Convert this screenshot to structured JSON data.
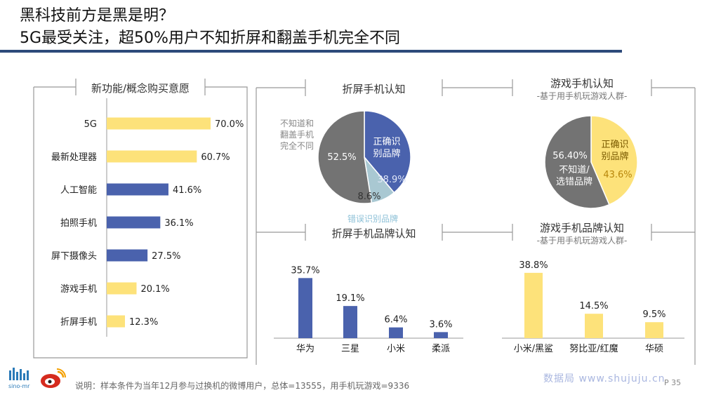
{
  "header": {
    "title_line1": "黑科技前方是黑是明？",
    "title_line2": "5G最受关注，超50%用户不知折屏和翻盖手机完全不同"
  },
  "footer": {
    "note": "说明：样本条件为当年12月参与过换机的微博用户，总体=13555，用手机玩游戏=9336",
    "watermark": "数据局 www.shujuju.cn",
    "page": "P 35",
    "logo_text": "sino-mr"
  },
  "colors": {
    "blue": "#4a62ad",
    "yellow": "#fde27a",
    "gray": "#737373",
    "lightblue": "#a9c8d2",
    "axis": "#999999"
  },
  "chart_data": [
    {
      "type": "bar",
      "orientation": "horizontal",
      "title": "新功能/概念购买意愿",
      "categories": [
        "5G",
        "最新处理器",
        "人工智能",
        "拍照手机",
        "屏下摄像头",
        "游戏手机",
        "折屏手机"
      ],
      "values": [
        70.0,
        60.7,
        41.6,
        36.1,
        27.5,
        20.1,
        12.3
      ],
      "value_labels": [
        "70.0%",
        "60.7%",
        "41.6%",
        "36.1%",
        "27.5%",
        "20.1%",
        "12.3%"
      ],
      "bar_colors": [
        "yellow",
        "yellow",
        "blue",
        "blue",
        "blue",
        "yellow",
        "yellow"
      ],
      "xlim": [
        0,
        100
      ]
    },
    {
      "type": "pie",
      "title": "折屏手机认知",
      "slices": [
        {
          "label": "正确识别品牌",
          "value": 38.9,
          "value_label": "38.9%",
          "color": "blue"
        },
        {
          "label": "错误识别品牌",
          "value": 8.6,
          "value_label": "8.6%",
          "color": "lightblue"
        },
        {
          "label": "不知道和翻盖手机完全不同",
          "value": 52.5,
          "value_label": "52.5%",
          "color": "gray"
        }
      ],
      "annotations": {
        "unknown_line1": "不知道和",
        "unknown_line2": "翻盖手机",
        "unknown_line3": "完全不同",
        "correct_line1": "正确识",
        "correct_line2": "别品牌",
        "wrong": "错误识别品牌"
      }
    },
    {
      "type": "pie",
      "title": "游戏手机认知",
      "subtitle": "-基于用手机玩游戏人群-",
      "slices": [
        {
          "label": "正确识别品牌",
          "value": 43.6,
          "value_label": "43.6%",
          "color": "yellow"
        },
        {
          "label": "不知道/选错品牌",
          "value": 56.4,
          "value_label": "56.40%",
          "color": "gray"
        }
      ],
      "annotations": {
        "correct_line1": "正确识",
        "correct_line2": "别品牌",
        "unknown_line1": "不知道/",
        "unknown_line2": "选错品牌"
      }
    },
    {
      "type": "bar",
      "title": "折屏手机品牌认知",
      "categories": [
        "华为",
        "三星",
        "小米",
        "柔派"
      ],
      "values": [
        35.7,
        19.1,
        6.4,
        3.6
      ],
      "value_labels": [
        "35.7%",
        "19.1%",
        "6.4%",
        "3.6%"
      ],
      "bar_color": "blue",
      "ylim": [
        0,
        40
      ]
    },
    {
      "type": "bar",
      "title": "游戏手机品牌认知",
      "subtitle": "-基于用手机玩游戏人群-",
      "categories": [
        "小米/黑鲨",
        "努比亚/红魔",
        "华硕"
      ],
      "values": [
        38.8,
        14.5,
        9.5
      ],
      "value_labels": [
        "38.8%",
        "14.5%",
        "9.5%"
      ],
      "bar_color": "yellow",
      "ylim": [
        0,
        40
      ]
    }
  ]
}
